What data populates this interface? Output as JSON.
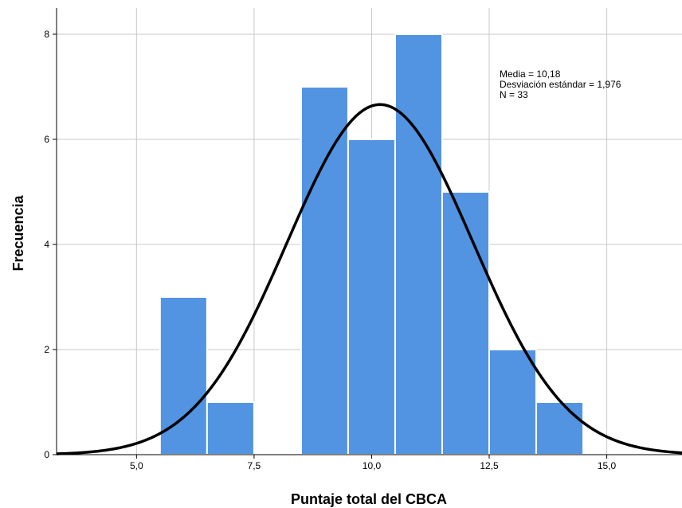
{
  "chart_data": {
    "type": "histogram",
    "xlabel": "Puntaje total del CBCA",
    "ylabel": "Frecuencia",
    "xlim": [
      3.3,
      16.6
    ],
    "ylim": [
      0,
      8.5
    ],
    "x_ticks": [
      5.0,
      7.5,
      10.0,
      12.5,
      15.0
    ],
    "x_tick_labels": [
      "5,0",
      "7,5",
      "10,0",
      "12,5",
      "15,0"
    ],
    "y_ticks": [
      0,
      2,
      4,
      6,
      8
    ],
    "y_tick_labels": [
      "0",
      "2",
      "4",
      "6",
      "8"
    ],
    "bins": [
      {
        "start": 5.5,
        "end": 6.5,
        "count": 3
      },
      {
        "start": 6.5,
        "end": 7.5,
        "count": 1
      },
      {
        "start": 8.5,
        "end": 9.5,
        "count": 7
      },
      {
        "start": 9.5,
        "end": 10.5,
        "count": 6
      },
      {
        "start": 10.5,
        "end": 11.5,
        "count": 8
      },
      {
        "start": 11.5,
        "end": 12.5,
        "count": 5
      },
      {
        "start": 12.5,
        "end": 13.5,
        "count": 2
      },
      {
        "start": 13.5,
        "end": 14.5,
        "count": 1
      }
    ],
    "normal_curve": {
      "mean": 10.18,
      "sd": 1.976,
      "n": 33,
      "bin_width": 1
    },
    "stats_text": [
      "Media = 10,18",
      "Desviación estándar = 1,976",
      "N = 33"
    ],
    "bar_color": "#5294e2",
    "bar_edge_color": "#ffffff",
    "curve_color": "#000000",
    "grid": true,
    "grid_color": "#c8c8c8"
  }
}
